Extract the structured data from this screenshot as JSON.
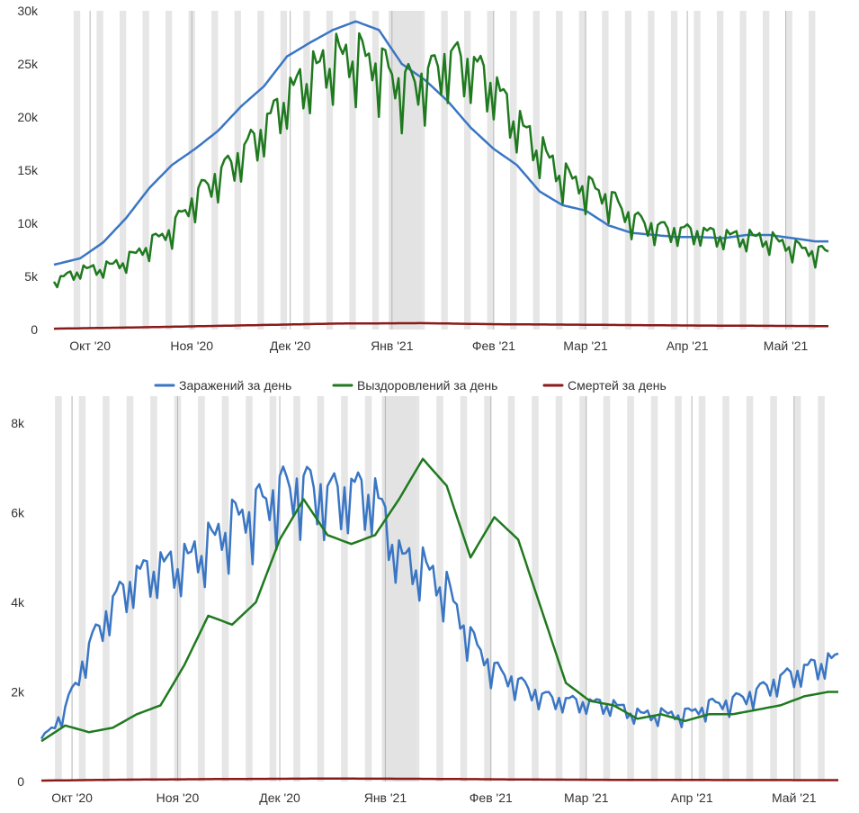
{
  "legend": {
    "items": [
      {
        "label": "Заражений за день",
        "color": "#3a76c4"
      },
      {
        "label": "Выздоровлений за день",
        "color": "#1f7a1f"
      },
      {
        "label": "Смертей за день",
        "color": "#8b1a1a"
      }
    ]
  },
  "chart_data": [
    {
      "type": "line",
      "x_range": [
        "2020-09-20",
        "2021-05-14"
      ],
      "x_ticks": [
        {
          "date": "2020-10-01",
          "label": "Окт '20"
        },
        {
          "date": "2020-11-01",
          "label": "Ноя '20"
        },
        {
          "date": "2020-12-01",
          "label": "Дек '20"
        },
        {
          "date": "2021-01-01",
          "label": "Янв '21"
        },
        {
          "date": "2021-02-01",
          "label": "Фев '21"
        },
        {
          "date": "2021-03-01",
          "label": "Мар '21"
        },
        {
          "date": "2021-04-01",
          "label": "Апр '21"
        },
        {
          "date": "2021-05-01",
          "label": "Май '21"
        }
      ],
      "ylim": [
        0,
        30000
      ],
      "y_ticks": [
        {
          "value": 0,
          "label": "0"
        },
        {
          "value": 5000,
          "label": "5k"
        },
        {
          "value": 10000,
          "label": "10k"
        },
        {
          "value": 15000,
          "label": "15k"
        },
        {
          "value": 20000,
          "label": "20k"
        },
        {
          "value": 25000,
          "label": "25k"
        },
        {
          "value": 30000,
          "label": "30k"
        }
      ],
      "highlight_band": [
        "2020-12-31",
        "2021-01-10"
      ],
      "series": [
        {
          "name": "Заражений за день",
          "color": "#3a76c4",
          "kind": "smooth",
          "points": [
            [
              "2020-09-20",
              6100
            ],
            [
              "2020-09-28",
              6700
            ],
            [
              "2020-10-05",
              8200
            ],
            [
              "2020-10-12",
              10500
            ],
            [
              "2020-10-19",
              13300
            ],
            [
              "2020-10-26",
              15500
            ],
            [
              "2020-11-02",
              17000
            ],
            [
              "2020-11-09",
              18700
            ],
            [
              "2020-11-16",
              21000
            ],
            [
              "2020-11-23",
              22900
            ],
            [
              "2020-11-30",
              25700
            ],
            [
              "2020-12-07",
              27000
            ],
            [
              "2020-12-14",
              28200
            ],
            [
              "2020-12-21",
              29000
            ],
            [
              "2020-12-28",
              28200
            ],
            [
              "2021-01-04",
              25000
            ],
            [
              "2021-01-11",
              23500
            ],
            [
              "2021-01-18",
              21500
            ],
            [
              "2021-01-25",
              19000
            ],
            [
              "2021-02-01",
              17000
            ],
            [
              "2021-02-08",
              15500
            ],
            [
              "2021-02-15",
              13000
            ],
            [
              "2021-02-22",
              11700
            ],
            [
              "2021-03-01",
              11200
            ],
            [
              "2021-03-08",
              9800
            ],
            [
              "2021-03-15",
              9100
            ],
            [
              "2021-03-22",
              8900
            ],
            [
              "2021-03-29",
              8700
            ],
            [
              "2021-04-05",
              8700
            ],
            [
              "2021-04-12",
              8600
            ],
            [
              "2021-04-19",
              8900
            ],
            [
              "2021-04-26",
              8900
            ],
            [
              "2021-05-03",
              8600
            ],
            [
              "2021-05-10",
              8300
            ]
          ]
        },
        {
          "name": "Выздоровлений за день",
          "color": "#1f7a1f",
          "kind": "weekly",
          "points": [
            [
              "2020-09-20",
              4500
            ],
            [
              "2020-09-28",
              5600
            ],
            [
              "2020-10-05",
              5800
            ],
            [
              "2020-10-12",
              6500
            ],
            [
              "2020-10-19",
              8000
            ],
            [
              "2020-10-26",
              9500
            ],
            [
              "2020-11-02",
              12500
            ],
            [
              "2020-11-09",
              14500
            ],
            [
              "2020-11-16",
              16500
            ],
            [
              "2020-11-23",
              19000
            ],
            [
              "2020-11-30",
              22000
            ],
            [
              "2020-12-07",
              24000
            ],
            [
              "2020-12-14",
              25500
            ],
            [
              "2020-12-21",
              25800
            ],
            [
              "2020-12-28",
              25000
            ],
            [
              "2021-01-04",
              23000
            ],
            [
              "2021-01-11",
              23500
            ],
            [
              "2021-01-18",
              25500
            ],
            [
              "2021-01-25",
              25000
            ],
            [
              "2021-02-01",
              23000
            ],
            [
              "2021-02-08",
              19500
            ],
            [
              "2021-02-15",
              17000
            ],
            [
              "2021-02-22",
              14500
            ],
            [
              "2021-03-01",
              13500
            ],
            [
              "2021-03-08",
              12500
            ],
            [
              "2021-03-15",
              10500
            ],
            [
              "2021-03-22",
              9600
            ],
            [
              "2021-03-29",
              9300
            ],
            [
              "2021-04-05",
              9200
            ],
            [
              "2021-04-12",
              8800
            ],
            [
              "2021-04-19",
              8700
            ],
            [
              "2021-04-26",
              8500
            ],
            [
              "2021-05-03",
              7800
            ],
            [
              "2021-05-10",
              7300
            ]
          ]
        },
        {
          "name": "Смертей за день",
          "color": "#8b1a1a",
          "kind": "smooth",
          "points": [
            [
              "2020-09-20",
              80
            ],
            [
              "2020-10-15",
              200
            ],
            [
              "2020-11-15",
              380
            ],
            [
              "2020-12-15",
              560
            ],
            [
              "2021-01-10",
              600
            ],
            [
              "2021-02-01",
              500
            ],
            [
              "2021-03-01",
              450
            ],
            [
              "2021-04-01",
              380
            ],
            [
              "2021-05-14",
              320
            ]
          ]
        }
      ]
    },
    {
      "type": "line",
      "x_range": [
        "2020-09-22",
        "2021-05-14"
      ],
      "x_ticks": [
        {
          "date": "2020-10-01",
          "label": "Окт '20"
        },
        {
          "date": "2020-11-01",
          "label": "Ноя '20"
        },
        {
          "date": "2020-12-01",
          "label": "Дек '20"
        },
        {
          "date": "2021-01-01",
          "label": "Янв '21"
        },
        {
          "date": "2021-02-01",
          "label": "Фев '21"
        },
        {
          "date": "2021-03-01",
          "label": "Мар '21"
        },
        {
          "date": "2021-04-01",
          "label": "Апр '21"
        },
        {
          "date": "2021-05-01",
          "label": "Май '21"
        }
      ],
      "ylim": [
        0,
        8600
      ],
      "y_ticks": [
        {
          "value": 0,
          "label": "0"
        },
        {
          "value": 2000,
          "label": "2k"
        },
        {
          "value": 4000,
          "label": "4k"
        },
        {
          "value": 6000,
          "label": "6k"
        },
        {
          "value": 8000,
          "label": "8k"
        }
      ],
      "highlight_band": [
        "2020-12-31",
        "2021-01-10"
      ],
      "series": [
        {
          "name": "Заражений за день",
          "color": "#3a76c4",
          "kind": "weekly",
          "points": [
            [
              "2020-09-22",
              900
            ],
            [
              "2020-09-29",
              1600
            ],
            [
              "2020-10-06",
              3000
            ],
            [
              "2020-10-13",
              4000
            ],
            [
              "2020-10-20",
              4600
            ],
            [
              "2020-10-27",
              4800
            ],
            [
              "2020-11-03",
              4900
            ],
            [
              "2020-11-10",
              5300
            ],
            [
              "2020-11-17",
              5800
            ],
            [
              "2020-11-24",
              6100
            ],
            [
              "2020-12-01",
              6500
            ],
            [
              "2020-12-08",
              6600
            ],
            [
              "2020-12-15",
              6400
            ],
            [
              "2020-12-22",
              6500
            ],
            [
              "2020-12-29",
              6400
            ],
            [
              "2021-01-05",
              5000
            ],
            [
              "2021-01-12",
              4800
            ],
            [
              "2021-01-19",
              4300
            ],
            [
              "2021-01-26",
              3200
            ],
            [
              "2021-02-02",
              2500
            ],
            [
              "2021-02-09",
              2200
            ],
            [
              "2021-02-16",
              1900
            ],
            [
              "2021-02-23",
              1800
            ],
            [
              "2021-03-02",
              1750
            ],
            [
              "2021-03-09",
              1700
            ],
            [
              "2021-03-16",
              1500
            ],
            [
              "2021-03-23",
              1500
            ],
            [
              "2021-03-30",
              1500
            ],
            [
              "2021-04-06",
              1700
            ],
            [
              "2021-04-13",
              1800
            ],
            [
              "2021-04-20",
              2000
            ],
            [
              "2021-04-27",
              2300
            ],
            [
              "2021-05-04",
              2500
            ],
            [
              "2021-05-11",
              2700
            ]
          ]
        },
        {
          "name": "Выздоровлений за день",
          "color": "#1f7a1f",
          "kind": "smooth",
          "points": [
            [
              "2020-09-22",
              900
            ],
            [
              "2020-09-29",
              1250
            ],
            [
              "2020-10-06",
              1100
            ],
            [
              "2020-10-13",
              1200
            ],
            [
              "2020-10-20",
              1500
            ],
            [
              "2020-10-27",
              1700
            ],
            [
              "2020-11-03",
              2600
            ],
            [
              "2020-11-10",
              3700
            ],
            [
              "2020-11-17",
              3500
            ],
            [
              "2020-11-24",
              4000
            ],
            [
              "2020-12-01",
              5400
            ],
            [
              "2020-12-08",
              6300
            ],
            [
              "2020-12-15",
              5500
            ],
            [
              "2020-12-22",
              5300
            ],
            [
              "2020-12-29",
              5500
            ],
            [
              "2021-01-05",
              6300
            ],
            [
              "2021-01-12",
              7200
            ],
            [
              "2021-01-19",
              6600
            ],
            [
              "2021-01-26",
              5000
            ],
            [
              "2021-02-02",
              5900
            ],
            [
              "2021-02-09",
              5400
            ],
            [
              "2021-02-16",
              3800
            ],
            [
              "2021-02-23",
              2200
            ],
            [
              "2021-03-02",
              1800
            ],
            [
              "2021-03-09",
              1700
            ],
            [
              "2021-03-16",
              1400
            ],
            [
              "2021-03-23",
              1500
            ],
            [
              "2021-03-30",
              1350
            ],
            [
              "2021-04-06",
              1500
            ],
            [
              "2021-04-13",
              1500
            ],
            [
              "2021-04-20",
              1600
            ],
            [
              "2021-04-27",
              1700
            ],
            [
              "2021-05-04",
              1900
            ],
            [
              "2021-05-11",
              2000
            ]
          ]
        },
        {
          "name": "Смертей за день",
          "color": "#8b1a1a",
          "kind": "smooth",
          "points": [
            [
              "2020-09-22",
              20
            ],
            [
              "2020-10-15",
              40
            ],
            [
              "2020-11-15",
              55
            ],
            [
              "2020-12-15",
              65
            ],
            [
              "2021-01-10",
              60
            ],
            [
              "2021-02-10",
              45
            ],
            [
              "2021-03-15",
              35
            ],
            [
              "2021-05-14",
              30
            ]
          ]
        }
      ]
    }
  ]
}
